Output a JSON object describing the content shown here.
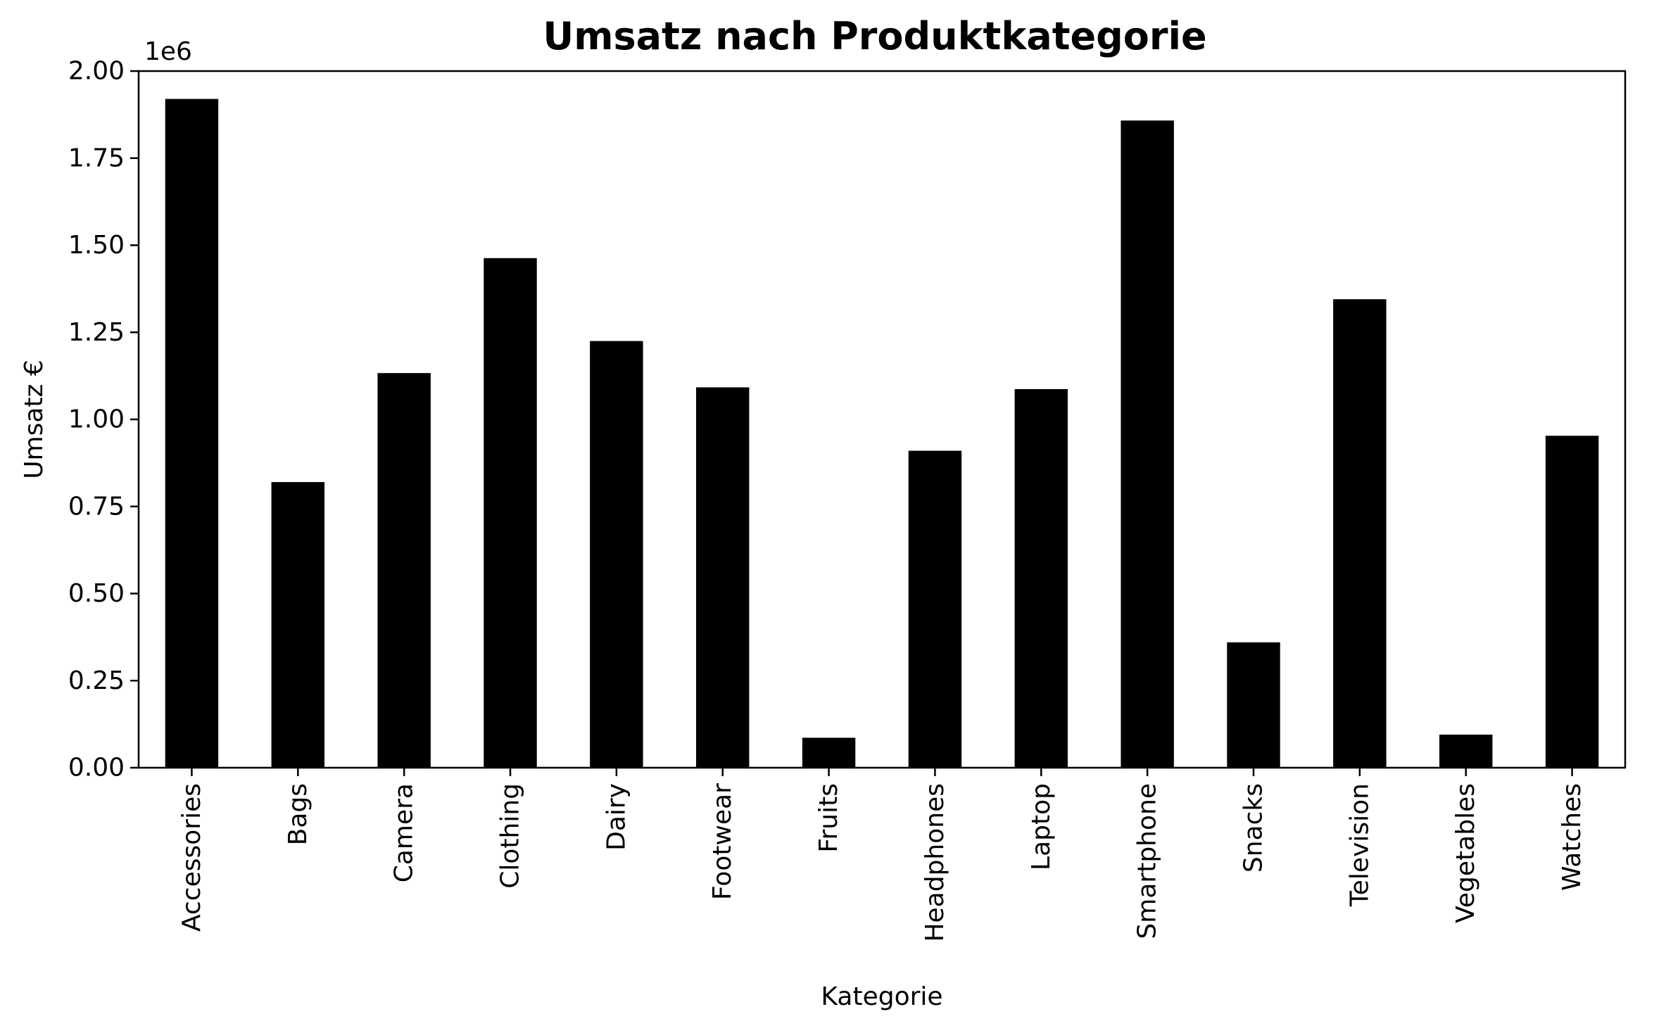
{
  "chart_data": {
    "type": "bar",
    "title": "Umsatz nach Produktkategorie",
    "xlabel": "Kategorie",
    "ylabel": "Umsatz €",
    "y_offset_label": "1e6",
    "bar_color": "#000000",
    "ylim": [
      0,
      2000000
    ],
    "yticks": [
      0,
      250000,
      500000,
      750000,
      1000000,
      1250000,
      1500000,
      1750000,
      2000000
    ],
    "ytick_labels": [
      "0.00",
      "0.25",
      "0.50",
      "0.75",
      "1.00",
      "1.25",
      "1.50",
      "1.75",
      "2.00"
    ],
    "grid": false,
    "categories": [
      "Accessories",
      "Bags",
      "Camera",
      "Clothing",
      "Dairy",
      "Footwear",
      "Fruits",
      "Headphones",
      "Laptop",
      "Smartphone",
      "Snacks",
      "Television",
      "Vegetables",
      "Watches"
    ],
    "values": [
      1920000,
      820000,
      1133000,
      1463000,
      1225000,
      1092000,
      86000,
      910000,
      1087000,
      1858000,
      360000,
      1345000,
      95000,
      953000
    ]
  }
}
